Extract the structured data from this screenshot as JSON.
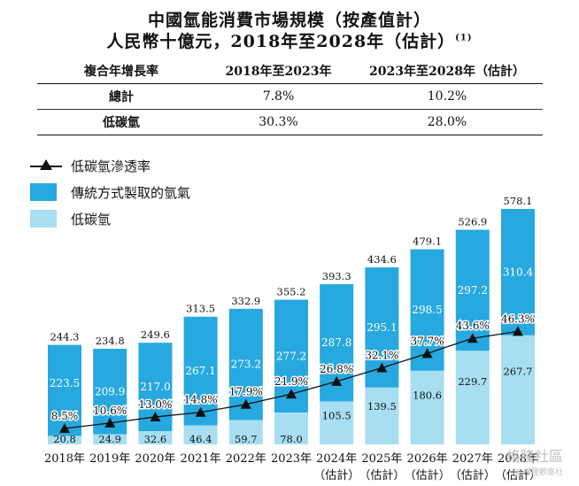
{
  "title": {
    "line1": "中國氫能消費市場規模（按產值計）",
    "line2": "人民幣十億元，2018年至2028年（估計）",
    "note": "(1)"
  },
  "cagr_table": {
    "header": [
      "複合年增長率",
      "2018年至2023年",
      "2023年至2028年（估計）"
    ],
    "rows": [
      {
        "label": "總計",
        "v1": "7.8%",
        "v2": "10.2%"
      },
      {
        "label": "低碳氫",
        "v1": "30.3%",
        "v2": "28.0%"
      }
    ]
  },
  "legend": {
    "penetration": "低碳氫滲透率",
    "traditional": "傳統方式製取的氫氣",
    "low_carbon": "低碳氫"
  },
  "colors": {
    "traditional": "#27a8df",
    "low_carbon": "#a8def2",
    "line": "#111111"
  },
  "chart_data": {
    "type": "bar",
    "stacked": true,
    "unit": "人民幣十億元",
    "categories": [
      {
        "year": "2018年",
        "sub": ""
      },
      {
        "year": "2019年",
        "sub": ""
      },
      {
        "year": "2020年",
        "sub": ""
      },
      {
        "year": "2021年",
        "sub": ""
      },
      {
        "year": "2022年",
        "sub": ""
      },
      {
        "year": "2023年",
        "sub": ""
      },
      {
        "year": "2024年",
        "sub": "（估計）"
      },
      {
        "year": "2025年",
        "sub": "（估計）"
      },
      {
        "year": "2026年",
        "sub": "（估計）"
      },
      {
        "year": "2027年",
        "sub": "（估計）"
      },
      {
        "year": "2028年",
        "sub": "（估計）"
      }
    ],
    "series": [
      {
        "name": "低碳氫",
        "values": [
          20.8,
          24.9,
          32.6,
          46.4,
          59.7,
          78.0,
          105.5,
          139.5,
          180.6,
          229.7,
          267.7
        ]
      },
      {
        "name": "傳統方式製取的氫氣",
        "values": [
          223.5,
          209.9,
          217.0,
          267.1,
          273.2,
          277.2,
          287.8,
          295.1,
          298.5,
          297.2,
          310.4
        ]
      }
    ],
    "totals": [
      244.3,
      234.8,
      249.6,
      313.5,
      332.9,
      355.2,
      393.3,
      434.6,
      479.1,
      526.9,
      578.1
    ],
    "line_series": {
      "name": "低碳氫滲透率",
      "values": [
        8.5,
        10.6,
        13.0,
        14.8,
        17.9,
        21.9,
        26.8,
        32.1,
        37.7,
        43.6,
        46.3
      ],
      "labels": [
        "8.5%",
        "10.6%",
        "13.0%",
        "14.8%",
        "17.9%",
        "21.9%",
        "26.8%",
        "32.1%",
        "37.7%",
        "43.6%",
        "46.3%"
      ]
    }
  },
  "watermark": {
    "main": "格隆社區",
    "sub": "@ 格隆觀察社"
  }
}
